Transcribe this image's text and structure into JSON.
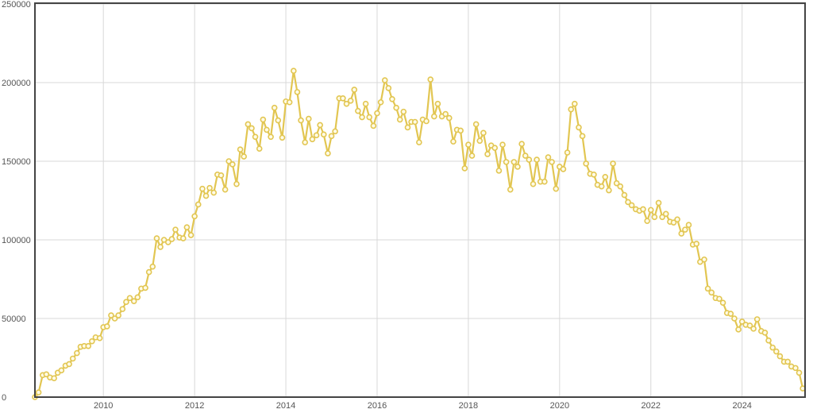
{
  "chart_data": {
    "type": "line",
    "color": "#e2c652",
    "grid": true,
    "xlim": [
      2008.5,
      2025.38
    ],
    "xticks": [
      2010,
      2012,
      2014,
      2016,
      2018,
      2020,
      2022,
      2024
    ],
    "ylim": [
      0,
      250000
    ],
    "yticks": [
      0,
      50000,
      100000,
      150000,
      200000,
      250000
    ],
    "x": [
      2008.5,
      2008.58,
      2008.67,
      2008.75,
      2008.83,
      2008.92,
      2009,
      2009.08,
      2009.17,
      2009.25,
      2009.33,
      2009.42,
      2009.5,
      2009.58,
      2009.67,
      2009.75,
      2009.83,
      2009.92,
      2010,
      2010.08,
      2010.17,
      2010.25,
      2010.33,
      2010.42,
      2010.5,
      2010.58,
      2010.67,
      2010.75,
      2010.83,
      2010.92,
      2011,
      2011.08,
      2011.17,
      2011.25,
      2011.33,
      2011.42,
      2011.5,
      2011.58,
      2011.67,
      2011.75,
      2011.83,
      2011.92,
      2012,
      2012.08,
      2012.17,
      2012.25,
      2012.33,
      2012.42,
      2012.5,
      2012.58,
      2012.67,
      2012.75,
      2012.83,
      2012.92,
      2013,
      2013.08,
      2013.17,
      2013.25,
      2013.33,
      2013.42,
      2013.5,
      2013.58,
      2013.67,
      2013.75,
      2013.83,
      2013.92,
      2014,
      2014.08,
      2014.17,
      2014.25,
      2014.33,
      2014.42,
      2014.5,
      2014.58,
      2014.67,
      2014.75,
      2014.83,
      2014.92,
      2015,
      2015.08,
      2015.17,
      2015.25,
      2015.33,
      2015.42,
      2015.5,
      2015.58,
      2015.67,
      2015.75,
      2015.83,
      2015.92,
      2016,
      2016.08,
      2016.17,
      2016.25,
      2016.33,
      2016.42,
      2016.5,
      2016.58,
      2016.67,
      2016.75,
      2016.83,
      2016.92,
      2017,
      2017.08,
      2017.17,
      2017.25,
      2017.33,
      2017.42,
      2017.5,
      2017.58,
      2017.67,
      2017.75,
      2017.83,
      2017.92,
      2018,
      2018.08,
      2018.17,
      2018.25,
      2018.33,
      2018.42,
      2018.5,
      2018.58,
      2018.67,
      2018.75,
      2018.83,
      2018.92,
      2019,
      2019.08,
      2019.17,
      2019.25,
      2019.33,
      2019.42,
      2019.5,
      2019.58,
      2019.67,
      2019.75,
      2019.83,
      2019.92,
      2020,
      2020.08,
      2020.17,
      2020.25,
      2020.33,
      2020.42,
      2020.5,
      2020.58,
      2020.67,
      2020.75,
      2020.83,
      2020.92,
      2021,
      2021.08,
      2021.17,
      2021.25,
      2021.33,
      2021.42,
      2021.5,
      2021.58,
      2021.67,
      2021.75,
      2021.83,
      2021.92,
      2022,
      2022.08,
      2022.17,
      2022.25,
      2022.33,
      2022.42,
      2022.5,
      2022.58,
      2022.67,
      2022.75,
      2022.83,
      2022.92,
      2023,
      2023.08,
      2023.17,
      2023.25,
      2023.33,
      2023.42,
      2023.5,
      2023.58,
      2023.67,
      2023.75,
      2023.83,
      2023.92,
      2024,
      2024.08,
      2024.17,
      2024.25,
      2024.33,
      2024.42,
      2024.5,
      2024.58,
      2024.67,
      2024.75,
      2024.83,
      2024.92,
      2025,
      2025.08,
      2025.17,
      2025.25,
      2025.33
    ],
    "values": [
      0,
      3000,
      14000,
      14500,
      12500,
      12000,
      15500,
      17000,
      20000,
      21000,
      24500,
      28000,
      32000,
      32500,
      32500,
      35500,
      38000,
      37500,
      44500,
      45000,
      52000,
      50000,
      52000,
      56000,
      60500,
      63000,
      61000,
      63500,
      69000,
      69500,
      79500,
      83000,
      101000,
      95500,
      100000,
      98500,
      100500,
      106500,
      101500,
      101000,
      108000,
      103000,
      115000,
      122500,
      132500,
      128000,
      133000,
      130000,
      141500,
      141000,
      132000,
      150000,
      148000,
      135500,
      157500,
      153000,
      173500,
      171000,
      165500,
      158000,
      176500,
      170000,
      165500,
      184000,
      176000,
      165000,
      188000,
      187500,
      207500,
      194000,
      176000,
      162000,
      177000,
      164000,
      166500,
      173000,
      167000,
      155000,
      166000,
      169000,
      190000,
      190000,
      186500,
      188500,
      195500,
      182000,
      178000,
      186500,
      178000,
      172500,
      180500,
      187500,
      201500,
      196500,
      189500,
      184000,
      176500,
      181500,
      171500,
      175000,
      175000,
      162000,
      176500,
      175500,
      202000,
      178500,
      186500,
      178500,
      180000,
      177500,
      162500,
      170000,
      169500,
      145500,
      160500,
      153500,
      173500,
      163000,
      168000,
      154500,
      160000,
      158500,
      144000,
      160500,
      149500,
      132000,
      149500,
      146500,
      161000,
      153500,
      151000,
      135500,
      151000,
      137000,
      137000,
      152500,
      149500,
      132500,
      146500,
      145000,
      155500,
      183000,
      186500,
      171500,
      166000,
      148500,
      142000,
      141500,
      135000,
      134000,
      140000,
      131500,
      148500,
      136000,
      134000,
      128500,
      124000,
      122000,
      119500,
      118500,
      119500,
      112000,
      119000,
      114500,
      123500,
      114500,
      116500,
      111500,
      111000,
      113000,
      104000,
      106500,
      109500,
      97000,
      97500,
      86000,
      87500,
      69000,
      66500,
      63000,
      62500,
      60000,
      53500,
      53000,
      50000,
      43000,
      48000,
      46000,
      45500,
      43500,
      49500,
      42000,
      41000,
      36000,
      31500,
      29000,
      26000,
      22500,
      22500,
      19500,
      18500,
      15500,
      5500
    ]
  }
}
